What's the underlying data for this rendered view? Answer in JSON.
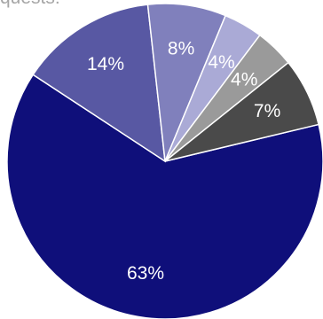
{
  "chart_data": {
    "type": "pie",
    "title": "quests:",
    "slices": [
      {
        "label": "63%",
        "value": 63,
        "color": "#0f0f7a",
        "label_color": "#ffffff"
      },
      {
        "label": "14%",
        "value": 14,
        "color": "#5858a3",
        "label_color": "#ffffff"
      },
      {
        "label": "8%",
        "value": 8,
        "color": "#8080bc",
        "label_color": "#ffffff"
      },
      {
        "label": "4%",
        "value": 4,
        "color": "#aaaad6",
        "label_color": "#ffffff"
      },
      {
        "label": "4%",
        "value": 4,
        "color": "#9a9a9a",
        "label_color": "#ffffff"
      },
      {
        "label": "7%",
        "value": 7,
        "color": "#4a4a4a",
        "label_color": "#ffffff"
      }
    ],
    "slice_border_color": "#ffffff"
  }
}
